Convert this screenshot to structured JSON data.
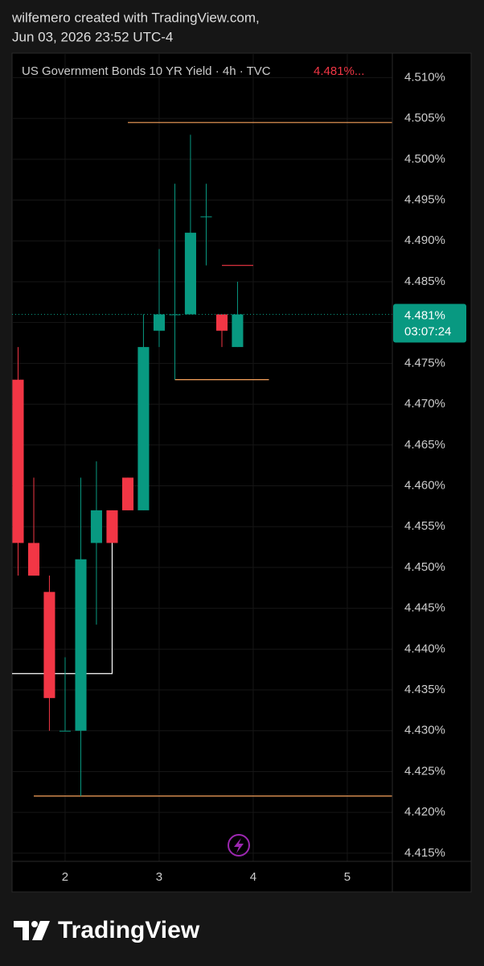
{
  "header": {
    "line1": "wilfemero created with TradingView.com,",
    "line2": "Jun 03, 2026 23:52 UTC-4"
  },
  "chart_data": {
    "type": "candlestick",
    "title": "US Government Bonds 10 YR Yield · 4h · TVC",
    "last_price": {
      "value": 4.481,
      "label": "4.481%..."
    },
    "price_tag": {
      "value": 4.481,
      "label": "4.481%"
    },
    "countdown": "03:07:24",
    "up_color": "#089981",
    "down_color": "#f23645",
    "x": [
      1.5,
      1.667,
      1.833,
      2.0,
      2.167,
      2.333,
      2.5,
      2.667,
      2.833,
      3.0,
      3.167,
      3.333,
      3.5,
      3.667,
      3.833
    ],
    "open": [
      4.473,
      4.453,
      4.447,
      4.43,
      4.43,
      4.453,
      4.457,
      4.461,
      4.457,
      4.479,
      4.481,
      4.481,
      4.493,
      4.481,
      4.477
    ],
    "high": [
      4.477,
      4.461,
      4.449,
      4.439,
      4.461,
      4.463,
      4.457,
      4.461,
      4.481,
      4.489,
      4.497,
      4.503,
      4.497,
      4.481,
      4.485
    ],
    "low": [
      4.449,
      4.449,
      4.43,
      4.43,
      4.422,
      4.443,
      4.453,
      4.457,
      4.457,
      4.477,
      4.473,
      4.481,
      4.487,
      4.477,
      4.477
    ],
    "close": [
      4.453,
      4.449,
      4.434,
      4.43,
      4.451,
      4.457,
      4.453,
      4.457,
      4.477,
      4.481,
      4.481,
      4.491,
      4.493,
      4.479,
      4.481
    ],
    "drawings": [
      {
        "color": "#f7a25c",
        "points": [
          [
            2.667,
            4.5045
          ],
          [
            5.479,
            4.5045
          ]
        ]
      },
      {
        "color": "#f7a25c",
        "points": [
          [
            1.667,
            4.422
          ],
          [
            5.479,
            4.422
          ]
        ]
      },
      {
        "color": "#f7a25c",
        "points": [
          [
            3.167,
            4.473
          ],
          [
            4.167,
            4.473
          ]
        ]
      },
      {
        "color": "#f23645",
        "points": [
          [
            3.667,
            4.487
          ],
          [
            4.0,
            4.487
          ]
        ]
      },
      {
        "color": "#ffffff",
        "points": [
          [
            1.436,
            4.437
          ],
          [
            2.5,
            4.437
          ],
          [
            2.5,
            4.453
          ]
        ]
      }
    ],
    "xlim": [
      1.436,
      5.479
    ],
    "ylim": [
      4.414,
      4.513
    ],
    "xticks": [
      2,
      3,
      4,
      5
    ],
    "yticks": [
      {
        "value": 4.415,
        "label": "4.415%"
      },
      {
        "value": 4.42,
        "label": "4.420%"
      },
      {
        "value": 4.425,
        "label": "4.425%"
      },
      {
        "value": 4.43,
        "label": "4.430%"
      },
      {
        "value": 4.435,
        "label": "4.435%"
      },
      {
        "value": 4.44,
        "label": "4.440%"
      },
      {
        "value": 4.445,
        "label": "4.445%"
      },
      {
        "value": 4.45,
        "label": "4.450%"
      },
      {
        "value": 4.455,
        "label": "4.455%"
      },
      {
        "value": 4.46,
        "label": "4.460%"
      },
      {
        "value": 4.465,
        "label": "4.465%"
      },
      {
        "value": 4.47,
        "label": "4.470%"
      },
      {
        "value": 4.475,
        "label": "4.475%"
      },
      {
        "value": 4.48,
        "label": "4.480%"
      },
      {
        "value": 4.485,
        "label": "4.485%"
      },
      {
        "value": 4.49,
        "label": "4.490%"
      },
      {
        "value": 4.495,
        "label": "4.495%"
      },
      {
        "value": 4.5,
        "label": "4.500%"
      },
      {
        "value": 4.505,
        "label": "4.505%"
      },
      {
        "value": 4.51,
        "label": "4.510%"
      }
    ],
    "grid": true
  },
  "footer": {
    "brand": "TradingView"
  }
}
